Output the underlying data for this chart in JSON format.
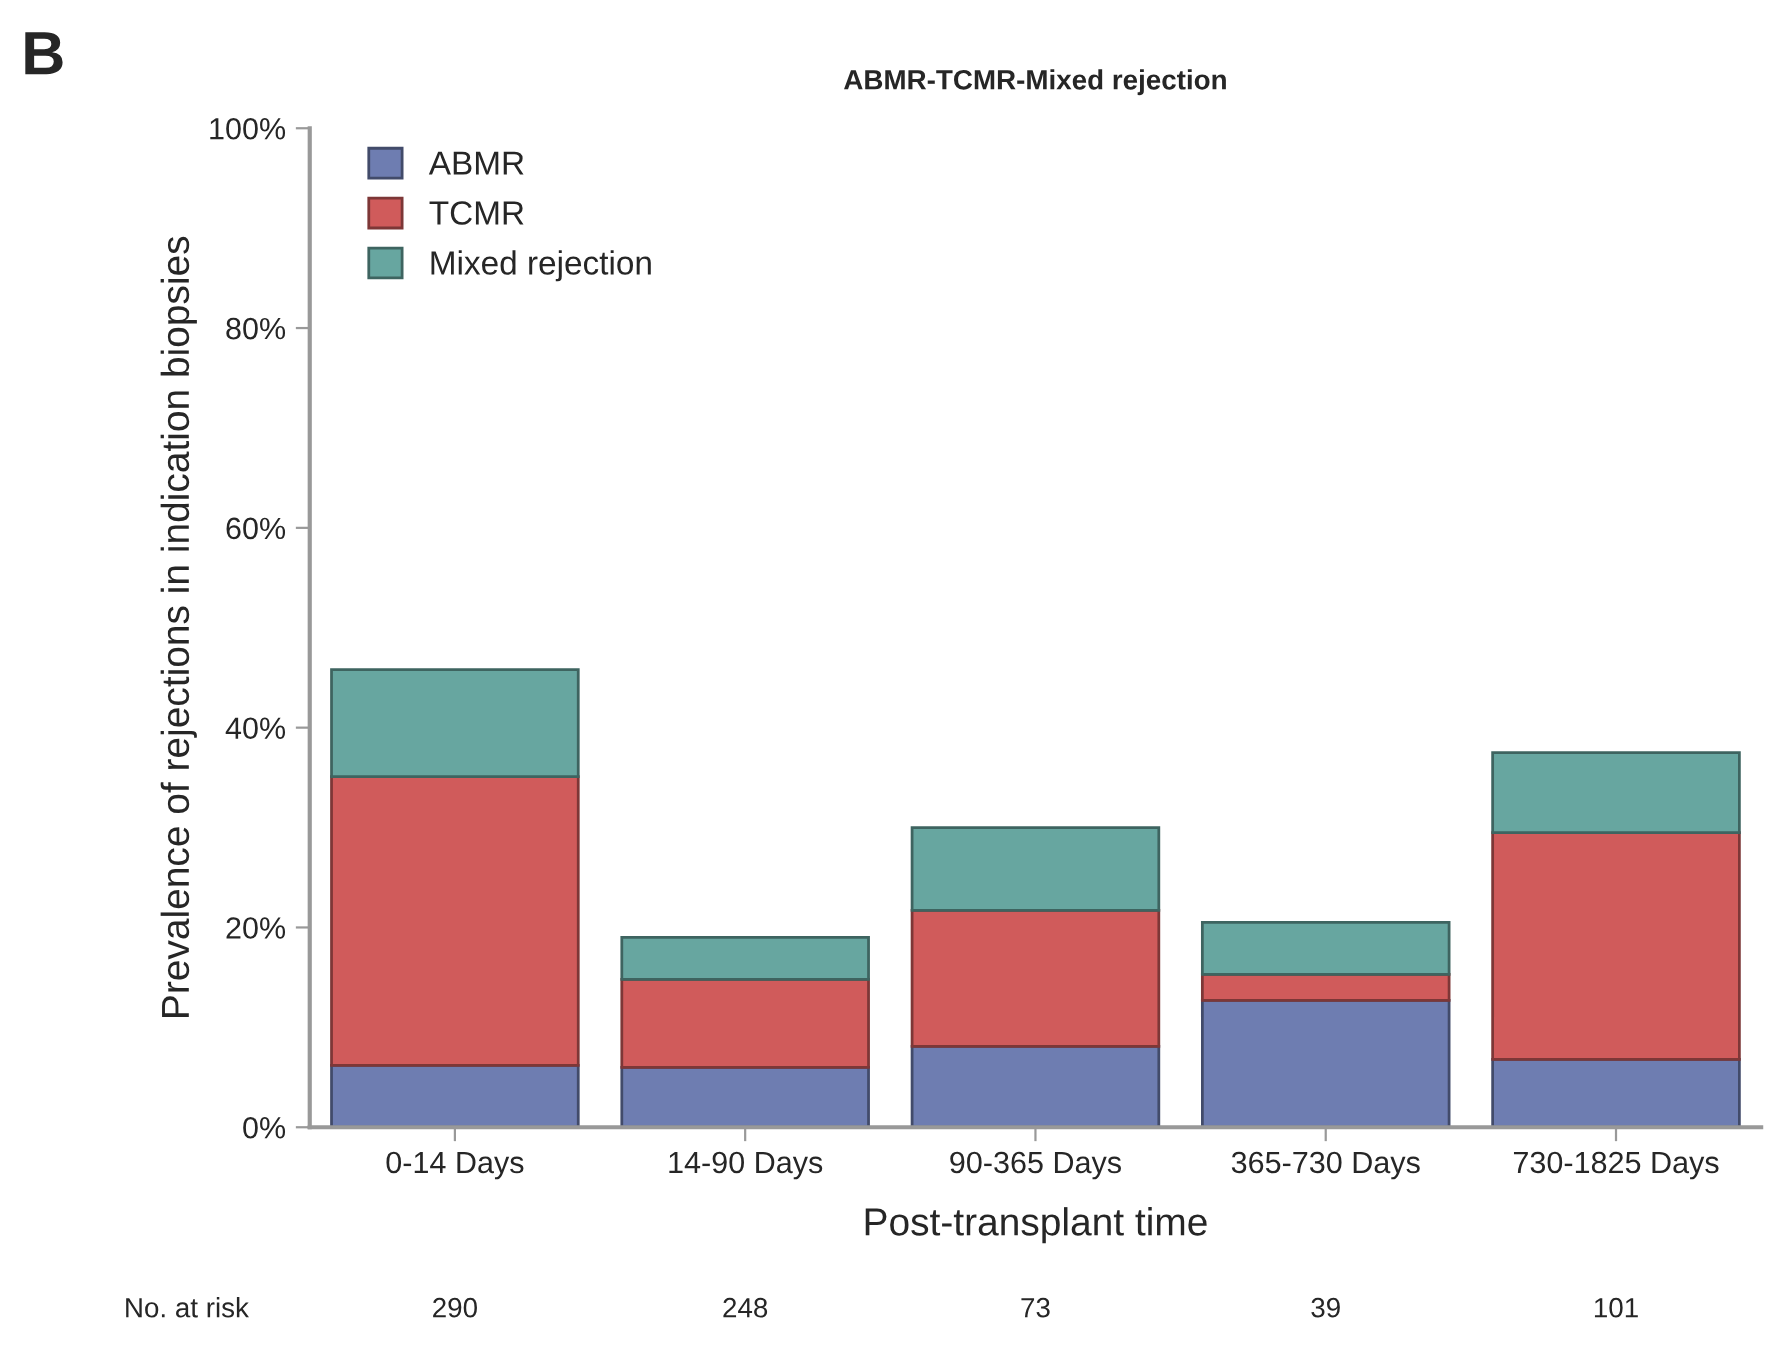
{
  "chart_data": {
    "type": "bar",
    "stacked": true,
    "title": "ABMR-TCMR-Mixed rejection",
    "xlabel": "Post-transplant time",
    "ylabel": "Prevalence of rejections in indication biopsies",
    "categories": [
      "0-14 Days",
      "14-90 Days",
      "90-365 Days",
      "365-730 Days",
      "730-1825 Days"
    ],
    "series": [
      {
        "name": "ABMR",
        "color": "#6e7db1",
        "values": [
          6.2,
          6.0,
          8.1,
          12.7,
          6.8
        ]
      },
      {
        "name": "TCMR",
        "color": "#d05b5b",
        "values": [
          28.9,
          8.8,
          13.6,
          2.6,
          22.7
        ]
      },
      {
        "name": "Mixed rejection",
        "color": "#67a6a0",
        "values": [
          10.7,
          4.2,
          8.3,
          5.2,
          8.0
        ]
      }
    ],
    "ylim": [
      0,
      100
    ],
    "yticks": [
      {
        "value": 0,
        "label": "0%"
      },
      {
        "value": 20,
        "label": "20%"
      },
      {
        "value": 40,
        "label": "40%"
      },
      {
        "value": 60,
        "label": "60%"
      },
      {
        "value": 80,
        "label": "80%"
      },
      {
        "value": 100,
        "label": "100%"
      }
    ],
    "grid": false,
    "legend": "top left",
    "annotations": [
      "B",
      "No. at risk",
      "290",
      "248",
      "73",
      "39",
      "101"
    ]
  }
}
